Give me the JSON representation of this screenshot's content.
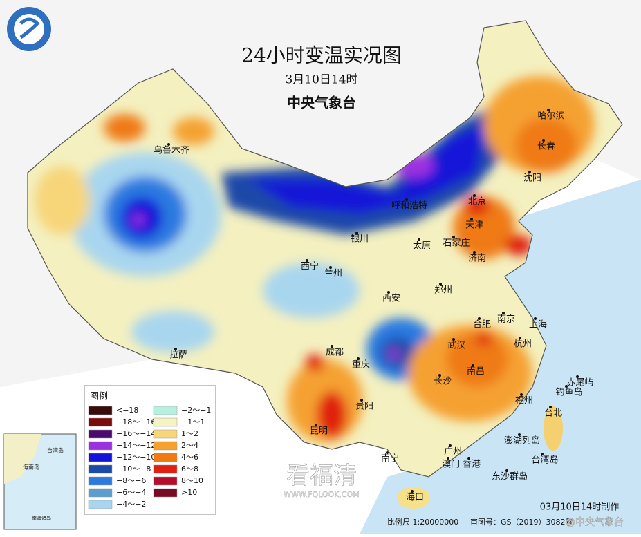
{
  "header": {
    "title": "24小时变温实况图",
    "subtitle": "3月10日14时",
    "issuer": "中央气象台"
  },
  "legend": {
    "title": "图例",
    "items": [
      {
        "label": "<−18",
        "color": "#3a0b0b"
      },
      {
        "label": "−18〜−16",
        "color": "#7a0c0c"
      },
      {
        "label": "−16〜−14",
        "color": "#4b0a6e"
      },
      {
        "label": "−14〜−12",
        "color": "#9b30e0"
      },
      {
        "label": "−12〜−10",
        "color": "#1414d8"
      },
      {
        "label": "−10〜−8",
        "color": "#1c4aa8"
      },
      {
        "label": "−8〜−6",
        "color": "#2a7ae0"
      },
      {
        "label": "−6〜−4",
        "color": "#5b9fd0"
      },
      {
        "label": "−4〜−2",
        "color": "#a9d6ef"
      },
      {
        "label": "−2〜−1",
        "color": "#b8f0e0"
      },
      {
        "label": "−1〜1",
        "color": "#f4f4c0"
      },
      {
        "label": "1〜2",
        "color": "#f7d67a"
      },
      {
        "label": "2〜4",
        "color": "#f5a130"
      },
      {
        "label": "4〜6",
        "color": "#ef7a12"
      },
      {
        "label": "6〜8",
        "color": "#e02010"
      },
      {
        "label": "8〜10",
        "color": "#b80c2c"
      },
      {
        "label": ">10",
        "color": "#7a0a24"
      }
    ]
  },
  "cities": [
    "乌鲁木齐",
    "哈尔滨",
    "长春",
    "沈阳",
    "呼和浩特",
    "北京",
    "天津",
    "银川",
    "太原",
    "石家庄",
    "济南",
    "西宁",
    "兰州",
    "郑州",
    "西安",
    "合肥",
    "南京",
    "上海",
    "拉萨",
    "成都",
    "武汉",
    "杭州",
    "重庆",
    "长沙",
    "南昌",
    "贵阳",
    "福州",
    "台北",
    "昆明",
    "南宁",
    "广州",
    "澳门",
    "香港",
    "海口",
    "台湾岛",
    "澎湖列岛",
    "钓鱼岛",
    "赤尾屿",
    "东沙群岛"
  ],
  "inset": {
    "labels": [
      "台湾岛",
      "海南岛",
      "南海诸岛"
    ]
  },
  "footer": {
    "scale": "比例尺 1:20000000",
    "approval": "审图号：GS（2019）3082号",
    "made": "03月10日14时制作",
    "credit": "@中央气象台"
  },
  "watermark": {
    "name": "看福清",
    "url": "WWW.FQLOOK.COM"
  }
}
